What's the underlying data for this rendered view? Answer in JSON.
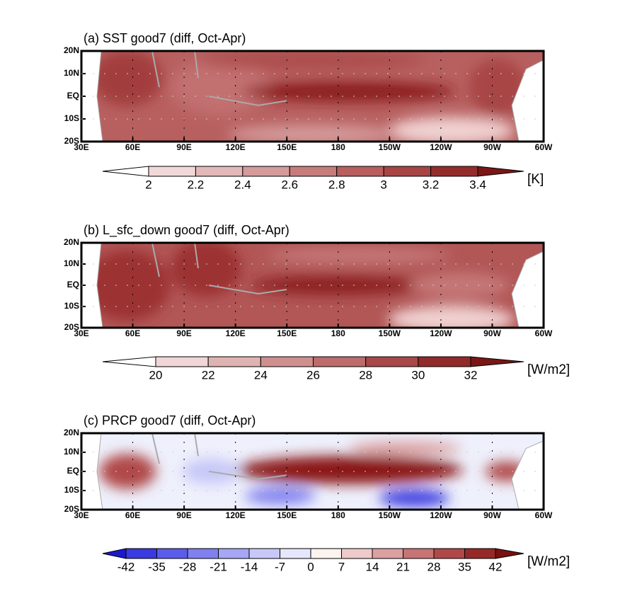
{
  "panels": [
    {
      "title": "(a) SST good7 (diff, Oct-Apr)",
      "yticks": [
        "20N",
        "10N",
        "EQ",
        "10S",
        "20S"
      ],
      "xticks": [
        "30E",
        "60E",
        "90E",
        "120E",
        "150E",
        "180",
        "150W",
        "120W",
        "90W",
        "60W"
      ],
      "colorbar": {
        "levels": [
          2,
          2.2,
          2.4,
          2.6,
          2.8,
          3,
          3.2,
          3.4
        ],
        "unit": "[K]",
        "colors": [
          "#ffffff",
          "#f2d9d9",
          "#e3b8b8",
          "#d59a9a",
          "#c77c7c",
          "#b85e5e",
          "#a84444",
          "#952c2c",
          "#7a1616"
        ]
      }
    },
    {
      "title": "(b) L_sfc_down good7 (diff, Oct-Apr)",
      "yticks": [
        "20N",
        "10N",
        "EQ",
        "10S",
        "20S"
      ],
      "xticks": [
        "30E",
        "60E",
        "90E",
        "120E",
        "150E",
        "180",
        "150W",
        "120W",
        "90W",
        "60W"
      ],
      "colorbar": {
        "levels": [
          20,
          22,
          24,
          26,
          28,
          30,
          32
        ],
        "unit": "[W/m2]",
        "colors": [
          "#ffffff",
          "#f0d6d6",
          "#e0b3b3",
          "#cf8f8f",
          "#bd6b6b",
          "#a84848",
          "#922a2a",
          "#7a1616"
        ]
      }
    },
    {
      "title": "(c) PRCP good7 (diff, Oct-Apr)",
      "yticks": [
        "20N",
        "10N",
        "EQ",
        "10S",
        "20S"
      ],
      "xticks": [
        "30E",
        "60E",
        "90E",
        "120E",
        "150E",
        "180",
        "150W",
        "120W",
        "90W",
        "60W"
      ],
      "colorbar": {
        "levels": [
          -42,
          -35,
          -28,
          -21,
          -14,
          -7,
          0,
          7,
          14,
          21,
          28,
          35,
          42
        ],
        "unit": "[W/m2]",
        "colors": [
          "#1a1acc",
          "#3a3ae0",
          "#5c5ceb",
          "#8080f0",
          "#a6a6f5",
          "#c8c8f8",
          "#e6e6fc",
          "#fdf3ee",
          "#eecaca",
          "#dba0a0",
          "#c77474",
          "#b04848",
          "#972828",
          "#7a1010"
        ]
      }
    }
  ]
}
